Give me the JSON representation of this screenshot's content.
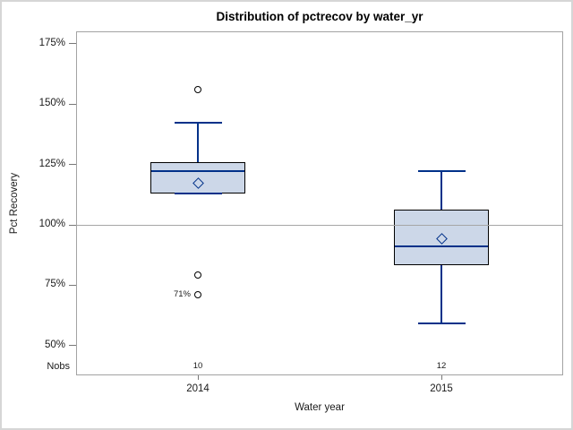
{
  "chart_data": {
    "type": "boxplot",
    "title": "Distribution of pctrecov by water_yr",
    "xlabel": "Water year",
    "ylabel": "Pct Recovery",
    "nobs_row_label": "Nobs",
    "ylim": [
      37.5,
      180
    ],
    "yticks": [
      {
        "value": 175,
        "label": "175%"
      },
      {
        "value": 150,
        "label": "150%"
      },
      {
        "value": 125,
        "label": "125%"
      },
      {
        "value": 100,
        "label": "100%"
      },
      {
        "value": 75,
        "label": "75%"
      },
      {
        "value": 50,
        "label": "50%"
      }
    ],
    "refline_value": 100,
    "grid": false,
    "legend": "none",
    "groups": [
      {
        "category": "2014",
        "nobs": "10",
        "mean": 117,
        "median": 122,
        "q1": 113,
        "q3": 126,
        "whisker_low": 113,
        "whisker_high": 142,
        "outliers": [
          {
            "value": 156,
            "label": ""
          },
          {
            "value": 79,
            "label": ""
          },
          {
            "value": 71,
            "label": "71%"
          }
        ]
      },
      {
        "category": "2015",
        "nobs": "12",
        "mean": 94,
        "median": 91,
        "q1": 83,
        "q3": 106,
        "whisker_low": 59,
        "whisker_high": 122,
        "outliers": []
      }
    ],
    "colors": {
      "box_fill": "#ccd7e8",
      "box_border": "#000000",
      "line": "#003189",
      "refline": "#a6a6a6",
      "frame": "#a3a3a3",
      "tick": "#777777",
      "text": "#1a1a1a",
      "outer_border": "#d6d6d6"
    }
  }
}
